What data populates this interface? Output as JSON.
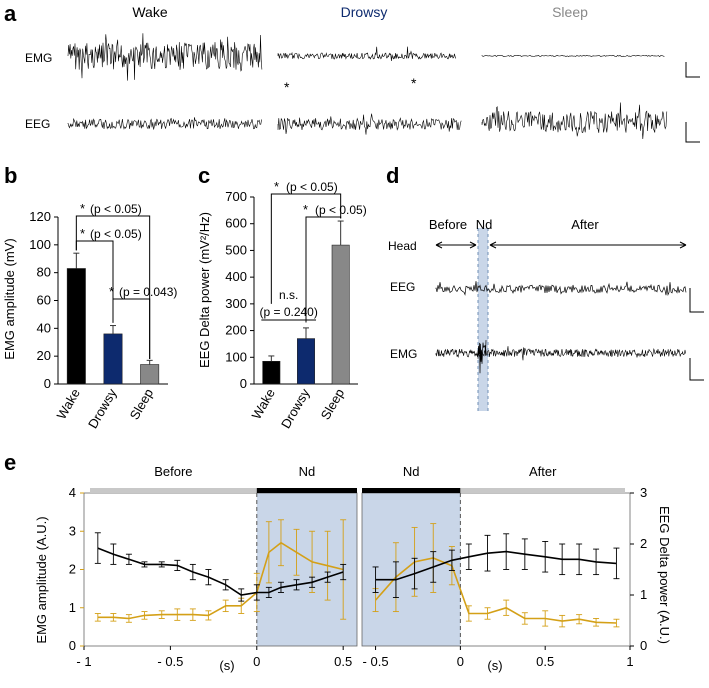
{
  "panel_labels": {
    "a": "a",
    "b": "b",
    "c": "c",
    "d": "d",
    "e": "e"
  },
  "colors": {
    "wake": "#000000",
    "drowsy": "#0d2a6e",
    "sleep": "#888888",
    "green": "#6aaa3a",
    "blue_label": "#4472c4",
    "orange": "#d4a017",
    "shade": "#c9d6e8",
    "axis": "#000000"
  },
  "panel_a": {
    "states": [
      "Wake",
      "Drowsy",
      "Sleep"
    ],
    "row_labels": [
      "EMG",
      "EEG"
    ],
    "asterisk": "*"
  },
  "chart_data": [
    {
      "panel": "b",
      "type": "bar",
      "categories": [
        "Wake",
        "Drowsy",
        "Sleep"
      ],
      "values": [
        83,
        36,
        14
      ],
      "errors": [
        11,
        6,
        3
      ],
      "ylabel": "EMG amplitude (mV)",
      "ylim": [
        0,
        120
      ],
      "yticks": [
        "0",
        "20",
        "40",
        "60",
        "80",
        "100",
        "120"
      ],
      "sig": [
        {
          "star": "*",
          "label": "(p < 0.05)"
        },
        {
          "star": "*",
          "label": "(p < 0.05)"
        },
        {
          "star": "*",
          "label": "(p = 0.043)"
        }
      ]
    },
    {
      "panel": "c",
      "type": "bar",
      "categories": [
        "Wake",
        "Drowsy",
        "Sleep"
      ],
      "values": [
        85,
        170,
        520
      ],
      "errors": [
        20,
        40,
        90
      ],
      "ylabel": "EEG Delta power (mV²/Hz)",
      "ylim": [
        0,
        700
      ],
      "yticks": [
        "0",
        "100",
        "200",
        "300",
        "400",
        "500",
        "600",
        "700"
      ],
      "sig": [
        {
          "star": "*",
          "label": "(p < 0.05)"
        },
        {
          "star": "*",
          "label": "(p < 0.05)"
        },
        {
          "star": "n.s.",
          "label": "(p = 0.240)"
        }
      ]
    },
    {
      "panel": "e-left",
      "type": "line",
      "x": [
        -0.92,
        -0.83,
        -0.74,
        -0.65,
        -0.55,
        -0.46,
        -0.37,
        -0.28,
        -0.18,
        -0.09,
        0.0,
        0.07,
        0.14,
        0.23,
        0.32,
        0.41,
        0.5
      ],
      "series": [
        {
          "name": "EMG amplitude",
          "axis": "left",
          "values": [
            0.75,
            0.75,
            0.72,
            0.8,
            0.82,
            0.82,
            0.82,
            0.8,
            1.05,
            1.05,
            1.4,
            2.45,
            2.7,
            2.45,
            2.2,
            2.1,
            2.0
          ],
          "errors": [
            0.1,
            0.1,
            0.1,
            0.1,
            0.1,
            0.15,
            0.15,
            0.12,
            0.15,
            0.2,
            0.5,
            0.8,
            0.6,
            0.6,
            0.8,
            0.9,
            1.3
          ]
        },
        {
          "name": "EEG Delta power",
          "axis": "right",
          "values": [
            1.92,
            1.8,
            1.7,
            1.6,
            1.6,
            1.58,
            1.45,
            1.35,
            1.2,
            1.0,
            1.05,
            1.05,
            1.15,
            1.2,
            1.25,
            1.35,
            1.45
          ],
          "errors": [
            0.3,
            0.2,
            0.1,
            0.05,
            0.05,
            0.1,
            0.15,
            0.15,
            0.1,
            0.12,
            0.15,
            0.1,
            0.1,
            0.1,
            0.1,
            0.1,
            0.15
          ]
        }
      ],
      "xticks": [
        {
          "v": -1,
          "label": "- 1"
        },
        {
          "v": -0.5,
          "label": "- 0.5"
        },
        {
          "v": 0,
          "label": "0"
        },
        {
          "v": 0.5,
          "label": "0.5"
        }
      ],
      "xlim": [
        -1,
        0.58
      ],
      "xlabel": "(s)",
      "ylabel_left": "EMG amplitude (A.U.)",
      "ylim_left": [
        0,
        4
      ],
      "yticks_left": [
        "0",
        "1",
        "2",
        "3",
        "4"
      ],
      "ylim_right": [
        0,
        3
      ],
      "bar_labels": [
        "Before",
        "Nd"
      ]
    },
    {
      "panel": "e-right",
      "type": "line",
      "x": [
        -0.5,
        -0.38,
        -0.27,
        -0.16,
        -0.05,
        0.05,
        0.16,
        0.27,
        0.38,
        0.5,
        0.6,
        0.7,
        0.8,
        0.92
      ],
      "series": [
        {
          "name": "EMG amplitude",
          "axis": "left",
          "values": [
            1.2,
            1.8,
            2.2,
            2.3,
            2.1,
            0.85,
            0.85,
            1.0,
            0.72,
            0.72,
            0.65,
            0.7,
            0.62,
            0.6
          ],
          "errors": [
            0.3,
            0.9,
            0.9,
            0.9,
            0.5,
            0.2,
            0.15,
            0.2,
            0.15,
            0.2,
            0.15,
            0.12,
            0.1,
            0.1
          ]
        },
        {
          "name": "EEG Delta power",
          "axis": "right",
          "values": [
            1.3,
            1.3,
            1.42,
            1.55,
            1.68,
            1.75,
            1.82,
            1.85,
            1.8,
            1.75,
            1.7,
            1.7,
            1.65,
            1.62
          ],
          "errors": [
            0.25,
            0.35,
            0.3,
            0.3,
            0.2,
            0.25,
            0.35,
            0.35,
            0.3,
            0.3,
            0.3,
            0.3,
            0.25,
            0.3
          ]
        }
      ],
      "xticks": [
        {
          "v": -0.5,
          "label": "- 0.5"
        },
        {
          "v": 0,
          "label": "0"
        },
        {
          "v": 0.5,
          "label": "0.5"
        },
        {
          "v": 1,
          "label": "1"
        }
      ],
      "xlim": [
        -0.58,
        1
      ],
      "xlabel": "(s)",
      "ylabel_right": "EEG Delta power (A.U.)",
      "ylim_right": [
        0,
        3
      ],
      "yticks_right": [
        "0",
        "1",
        "2",
        "3"
      ],
      "ylim_left": [
        0,
        4
      ],
      "bar_labels": [
        "Nd",
        "After"
      ]
    }
  ],
  "panel_d": {
    "labels": {
      "before": "Before",
      "nd": "Nd",
      "after": "After",
      "head": "Head",
      "eeg": "EEG",
      "emg": "EMG"
    }
  }
}
